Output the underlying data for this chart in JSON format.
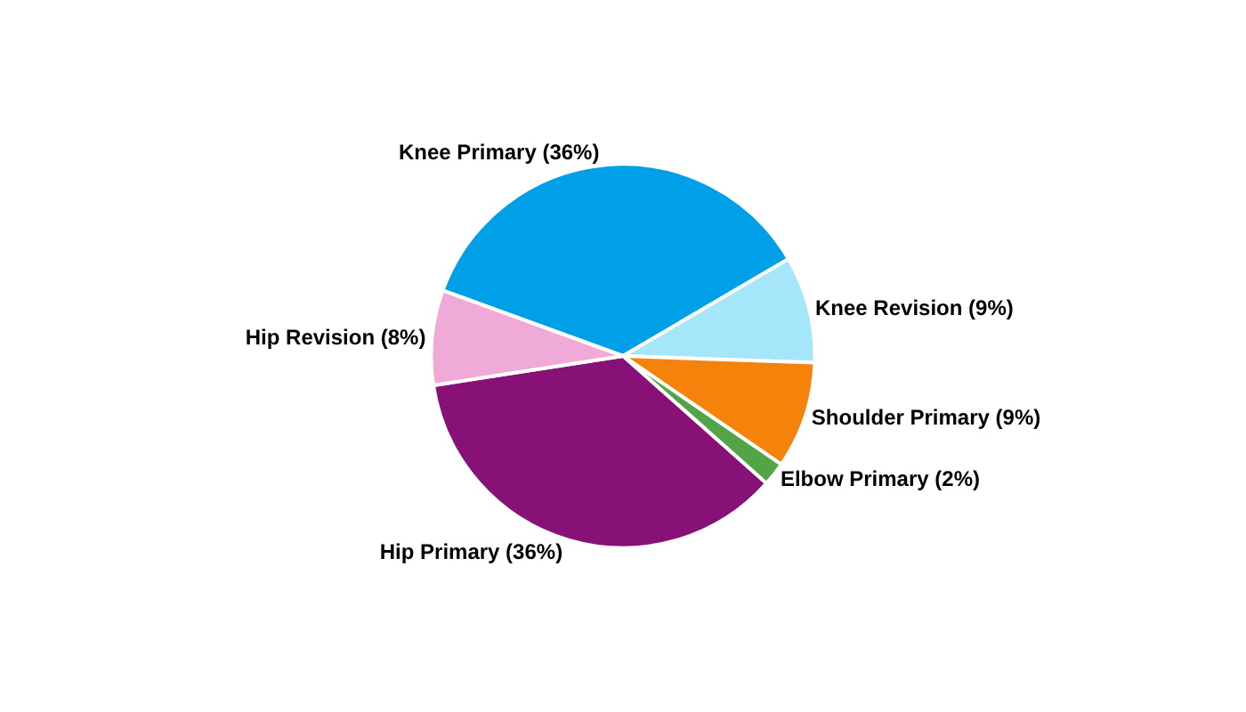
{
  "chart_data": {
    "type": "pie",
    "categories": [
      "Knee Primary",
      "Knee Revision",
      "Shoulder Primary",
      "Elbow Primary",
      "Hip Primary",
      "Hip Revision"
    ],
    "values": [
      36,
      9,
      9,
      2,
      36,
      8
    ],
    "value_labels": [
      "(36%)",
      "(9%)",
      "(9%)",
      "(2%)",
      "(36%)",
      "(8%)"
    ],
    "colors": [
      "#00a0e9",
      "#a6e6fb",
      "#f5820a",
      "#52a447",
      "#871177",
      "#f0aad8"
    ],
    "legend": false
  }
}
